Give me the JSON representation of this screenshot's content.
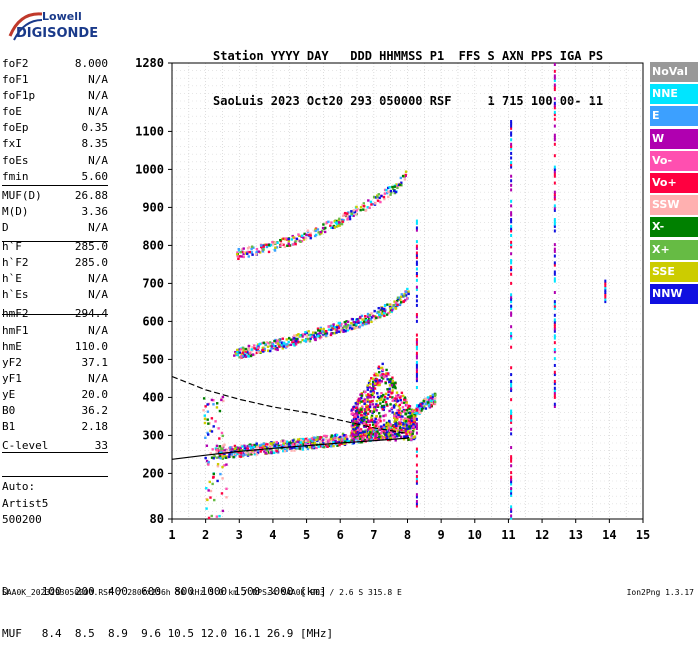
{
  "logo": {
    "line1": "Lowell",
    "line2": "DIGISONDE"
  },
  "header": {
    "labels": "Station YYYY DAY   DDD HHMMSS P1  FFS S AXN PPS IGA PS",
    "values": "SaoLuis 2023 Oct20 293 050000 RSF     1 715 100 00- 11"
  },
  "params": [
    {
      "k": "foF2",
      "v": "8.000"
    },
    {
      "k": "foF1",
      "v": "N/A"
    },
    {
      "k": "foF1p",
      "v": "N/A"
    },
    {
      "k": "foE",
      "v": "N/A"
    },
    {
      "k": "foEp",
      "v": "0.35"
    },
    {
      "k": "fxI",
      "v": "8.35"
    },
    {
      "k": "foEs",
      "v": "N/A"
    },
    {
      "k": "fmin",
      "v": "5.60"
    },
    {
      "k": "MUF(D)",
      "v": "26.88"
    },
    {
      "k": "M(D)",
      "v": "3.36"
    },
    {
      "k": "D",
      "v": "N/A"
    },
    {
      "k": "h`F",
      "v": "285.0"
    },
    {
      "k": "h`F2",
      "v": "285.0"
    },
    {
      "k": "h`E",
      "v": "N/A"
    },
    {
      "k": "h`Es",
      "v": "N/A"
    },
    {
      "k": "hmF2",
      "v": "294.4"
    },
    {
      "k": "hmF1",
      "v": "N/A"
    },
    {
      "k": "hmE",
      "v": "110.0"
    },
    {
      "k": "yF2",
      "v": "37.1"
    },
    {
      "k": "yF1",
      "v": "N/A"
    },
    {
      "k": "yE",
      "v": "20.0"
    },
    {
      "k": "B0",
      "v": "36.2"
    },
    {
      "k": "B1",
      "v": "2.18"
    },
    {
      "k": "C-level",
      "v": "33"
    }
  ],
  "auto": {
    "line1": "Auto:",
    "line2": "Artist5",
    "line3": "500200"
  },
  "legend": [
    {
      "label": "NoVal",
      "color": "#999999"
    },
    {
      "label": "NNE",
      "color": "#00e5ff"
    },
    {
      "label": "E",
      "color": "#3ca0ff"
    },
    {
      "label": "W",
      "color": "#b000b0"
    },
    {
      "label": "Vo-",
      "color": "#ff4fb0"
    },
    {
      "label": "Vo+",
      "color": "#ff0040"
    },
    {
      "label": "SSW",
      "color": "#ffb0b0"
    },
    {
      "label": "X-",
      "color": "#008000"
    },
    {
      "label": "X+",
      "color": "#66bb44"
    },
    {
      "label": "SSE",
      "color": "#cccc00"
    },
    {
      "label": "NNW",
      "color": "#1010e0"
    }
  ],
  "bottom": {
    "row1": "D     100  200  400  600  800 1000 1500 3000 [km]",
    "row2": "MUF   8.4  8.5  8.9  9.6 10.5 12.0 16.1 26.9 [MHz]"
  },
  "footer": {
    "left": "SAA0K_2023293050000.RSF / 280fx256h 50 kHz 5.0 km / DPS-4 SAA0K 903 / 2.6 S 315.8 E",
    "right": "Ion2Png 1.3.17"
  },
  "chart_data": {
    "type": "scatter",
    "title": "",
    "xlabel": "",
    "ylabel": "",
    "xlim": [
      1,
      15
    ],
    "ylim": [
      80,
      1280
    ],
    "x_ticks": [
      1,
      2,
      3,
      4,
      5,
      6,
      7,
      8,
      9,
      10,
      11,
      12,
      13,
      14,
      15
    ],
    "y_ticks": [
      80,
      200,
      300,
      400,
      500,
      600,
      700,
      800,
      900,
      1000,
      1100,
      1280
    ],
    "grid": true,
    "traces": [
      {
        "name": "F2 O-trace",
        "points": [
          [
            2.2,
            255
          ],
          [
            3,
            262
          ],
          [
            4,
            272
          ],
          [
            5,
            282
          ],
          [
            6,
            292
          ],
          [
            7,
            305
          ],
          [
            7.6,
            318
          ],
          [
            8,
            335
          ],
          [
            8.4,
            380
          ],
          [
            8.8,
            400
          ]
        ]
      },
      {
        "name": "2nd hop",
        "points": [
          [
            2.8,
            515
          ],
          [
            3.5,
            530
          ],
          [
            4.5,
            550
          ],
          [
            5.5,
            575
          ],
          [
            6.5,
            600
          ],
          [
            7.5,
            640
          ],
          [
            8,
            680
          ]
        ]
      },
      {
        "name": "3rd hop",
        "points": [
          [
            2.9,
            780
          ],
          [
            4,
            800
          ],
          [
            5,
            830
          ],
          [
            6,
            870
          ],
          [
            7,
            920
          ],
          [
            7.7,
            960
          ],
          [
            8,
            1000
          ]
        ]
      },
      {
        "name": "model profile",
        "points": [
          [
            1,
            237
          ],
          [
            2,
            248
          ],
          [
            3,
            258
          ],
          [
            4,
            266
          ],
          [
            5,
            273
          ],
          [
            6,
            280
          ],
          [
            7,
            286
          ],
          [
            8,
            293
          ],
          [
            8.05,
            295
          ]
        ]
      },
      {
        "name": "virtual height curve",
        "points": [
          [
            1,
            455
          ],
          [
            2,
            420
          ],
          [
            3,
            395
          ],
          [
            4,
            375
          ],
          [
            5,
            360
          ],
          [
            6,
            340
          ],
          [
            7,
            320
          ],
          [
            8,
            305
          ]
        ]
      }
    ]
  }
}
